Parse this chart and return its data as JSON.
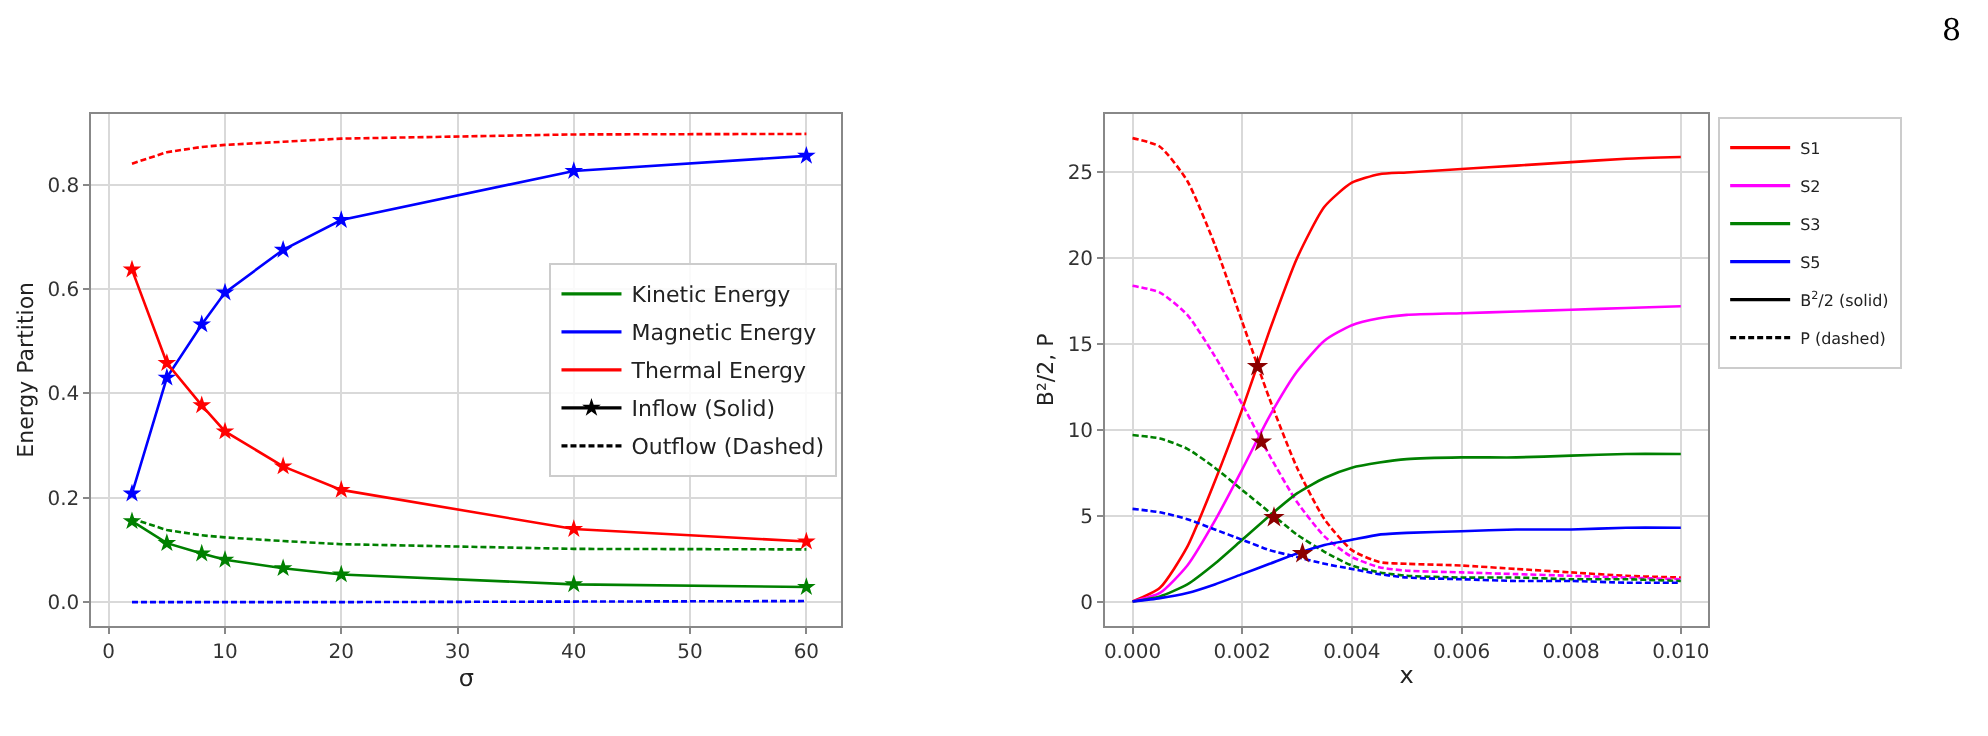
{
  "chart_data": [
    {
      "type": "line",
      "xlabel": "σ",
      "ylabel": "Energy Partition",
      "x": [
        2,
        5,
        8,
        10,
        15,
        20,
        40,
        60
      ],
      "xlim": [
        -1.5,
        63
      ],
      "xticks": [
        0,
        10,
        20,
        30,
        40,
        50,
        60
      ],
      "ylim": [
        -0.045,
        0.935
      ],
      "yticks": [
        {
          "value": 0,
          "label": "0.0"
        },
        0.2,
        0.4,
        0.6,
        0.8
      ],
      "grid": true,
      "legend": "right",
      "series": [
        {
          "color": "#008000",
          "marker": "star",
          "line_style": "solid",
          "values": [
            0.155,
            0.113,
            0.093,
            0.081,
            0.065,
            0.053,
            0.034,
            0.029
          ]
        },
        {
          "color": "#0000ff",
          "marker": "star",
          "line_style": "solid",
          "values": [
            0.208,
            0.43,
            0.532,
            0.593,
            0.675,
            0.732,
            0.826,
            0.855
          ]
        },
        {
          "color": "#ff0000",
          "marker": "star",
          "line_style": "solid",
          "values": [
            0.637,
            0.458,
            0.377,
            0.327,
            0.26,
            0.215,
            0.14,
            0.116
          ]
        },
        {
          "color": "#008000",
          "marker": "none",
          "line_style": "dashed",
          "values": [
            0.16,
            0.138,
            0.128,
            0.124,
            0.117,
            0.111,
            0.102,
            0.101
          ]
        },
        {
          "color": "#0000ff",
          "marker": "none",
          "line_style": "dashed",
          "values": [
            0,
            0,
            0,
            0,
            0,
            0,
            0.001,
            0.002
          ]
        },
        {
          "color": "#ff0000",
          "marker": "none",
          "line_style": "dashed",
          "values": [
            0.84,
            0.862,
            0.872,
            0.876,
            0.882,
            0.888,
            0.896,
            0.897
          ]
        },
        {
          "name": "Kinetic Energy",
          "color": "#008000",
          "marker": "none",
          "line_style": "solid",
          "values": [
            null,
            null,
            null,
            null,
            null,
            null,
            null,
            null
          ]
        },
        {
          "name": "Magnetic Energy",
          "color": "#0000ff",
          "marker": "none",
          "line_style": "solid",
          "values": [
            null,
            null,
            null,
            null,
            null,
            null,
            null,
            null
          ]
        },
        {
          "name": "Thermal Energy",
          "color": "#ff0000",
          "marker": "none",
          "line_style": "solid",
          "values": [
            null,
            null,
            null,
            null,
            null,
            null,
            null,
            null
          ]
        },
        {
          "name": "Inflow (Solid)",
          "color": "#000000",
          "marker": "star",
          "line_style": "solid",
          "values": [
            null,
            null,
            null,
            null,
            null,
            null,
            null,
            null
          ]
        },
        {
          "name": "Outflow (Dashed)",
          "color": "#000000",
          "marker": "none",
          "line_style": "dashed",
          "values": [
            null,
            null,
            null,
            null,
            null,
            null,
            null,
            null
          ]
        }
      ]
    },
    {
      "type": "line",
      "xlabel": "x",
      "ylabel": "B²/2, P",
      "x": [
        0,
        0.0005,
        0.001,
        0.0015,
        0.002,
        0.0025,
        0.003,
        0.0035,
        0.004,
        0.0045,
        0.005,
        0.006,
        0.007,
        0.008,
        0.009,
        0.01
      ],
      "xlim": [
        -0.0005,
        0.0105
      ],
      "xticks": [
        {
          "value": 0,
          "label": "0.000"
        },
        {
          "value": 0.002,
          "label": "0.002"
        },
        {
          "value": 0.004,
          "label": "0.004"
        },
        {
          "value": 0.006,
          "label": "0.006"
        },
        {
          "value": 0.008,
          "label": "0.008"
        },
        {
          "value": 0.01,
          "label": "0.010"
        }
      ],
      "ylim": [
        -1.4,
        28.4
      ],
      "yticks": [
        0,
        5,
        10,
        15,
        20,
        25
      ],
      "grid": true,
      "legend": "top right",
      "annotations": [
        "8"
      ],
      "series": [
        {
          "color": "#ff0000",
          "marker": "none",
          "line_style": "solid",
          "values": [
            0,
            0.8,
            3.2,
            7.0,
            11.2,
            15.8,
            20.0,
            23.0,
            24.4,
            24.9,
            25.0,
            25.2,
            25.4,
            25.6,
            25.8,
            25.9
          ]
        },
        {
          "color": "#ff0000",
          "marker": "none",
          "line_style": "dashed",
          "values": [
            27.0,
            26.5,
            24.5,
            20.8,
            16.3,
            11.8,
            7.8,
            4.8,
            3.0,
            2.3,
            2.2,
            2.1,
            1.9,
            1.7,
            1.5,
            1.4
          ]
        },
        {
          "color": "#ff00ff",
          "marker": "none",
          "line_style": "solid",
          "values": [
            0,
            0.5,
            2.1,
            4.7,
            7.7,
            10.8,
            13.4,
            15.2,
            16.1,
            16.5,
            16.7,
            16.8,
            16.9,
            17.0,
            17.1,
            17.2
          ]
        },
        {
          "color": "#ff00ff",
          "marker": "none",
          "line_style": "dashed",
          "values": [
            18.4,
            18.0,
            16.7,
            14.3,
            11.5,
            8.5,
            5.8,
            3.8,
            2.6,
            2.0,
            1.8,
            1.7,
            1.6,
            1.5,
            1.4,
            1.3
          ]
        },
        {
          "color": "#008000",
          "marker": "none",
          "line_style": "solid",
          "values": [
            0,
            0.3,
            1.0,
            2.2,
            3.6,
            5.0,
            6.3,
            7.2,
            7.8,
            8.1,
            8.3,
            8.4,
            8.4,
            8.5,
            8.6,
            8.6
          ]
        },
        {
          "color": "#008000",
          "marker": "none",
          "line_style": "dashed",
          "values": [
            9.7,
            9.5,
            8.9,
            7.8,
            6.5,
            5.2,
            3.9,
            2.9,
            2.1,
            1.7,
            1.5,
            1.4,
            1.4,
            1.3,
            1.3,
            1.2
          ]
        },
        {
          "color": "#0000ff",
          "marker": "none",
          "line_style": "solid",
          "values": [
            0,
            0.2,
            0.5,
            1.0,
            1.6,
            2.2,
            2.8,
            3.3,
            3.6,
            3.9,
            4.0,
            4.1,
            4.2,
            4.2,
            4.3,
            4.3
          ]
        },
        {
          "color": "#0000ff",
          "marker": "none",
          "line_style": "dashed",
          "values": [
            5.4,
            5.2,
            4.8,
            4.2,
            3.6,
            3.0,
            2.6,
            2.2,
            1.9,
            1.6,
            1.4,
            1.3,
            1.2,
            1.2,
            1.1,
            1.1
          ]
        },
        {
          "type": "scatter",
          "color": "#8b0000",
          "marker": "star",
          "x": [
            0.00228,
            0.00235,
            0.00258,
            0.0031
          ],
          "values": [
            13.7,
            9.3,
            4.9,
            2.8
          ]
        },
        {
          "name": "S1",
          "color": "#ff0000",
          "marker": "none",
          "line_style": "solid",
          "values": [
            null,
            null,
            null,
            null,
            null,
            null,
            null,
            null,
            null,
            null,
            null,
            null,
            null,
            null,
            null,
            null
          ]
        },
        {
          "name": "S2",
          "color": "#ff00ff",
          "marker": "none",
          "line_style": "solid",
          "values": [
            null,
            null,
            null,
            null,
            null,
            null,
            null,
            null,
            null,
            null,
            null,
            null,
            null,
            null,
            null,
            null
          ]
        },
        {
          "name": "S3",
          "color": "#008000",
          "marker": "none",
          "line_style": "solid",
          "values": [
            null,
            null,
            null,
            null,
            null,
            null,
            null,
            null,
            null,
            null,
            null,
            null,
            null,
            null,
            null,
            null
          ]
        },
        {
          "name": "S5",
          "color": "#0000ff",
          "marker": "none",
          "line_style": "solid",
          "values": [
            null,
            null,
            null,
            null,
            null,
            null,
            null,
            null,
            null,
            null,
            null,
            null,
            null,
            null,
            null,
            null
          ]
        },
        {
          "name": "B$^{2}$/2 (solid)",
          "color": "#000000",
          "marker": "none",
          "line_style": "solid",
          "values": [
            null,
            null,
            null,
            null,
            null,
            null,
            null,
            null,
            null,
            null,
            null,
            null,
            null,
            null,
            null,
            null
          ]
        },
        {
          "name": "P (dashed)",
          "color": "#000000",
          "marker": "none",
          "line_style": "dashed",
          "values": [
            null,
            null,
            null,
            null,
            null,
            null,
            null,
            null,
            null,
            null,
            null,
            null,
            null,
            null,
            null,
            null
          ]
        }
      ]
    }
  ]
}
